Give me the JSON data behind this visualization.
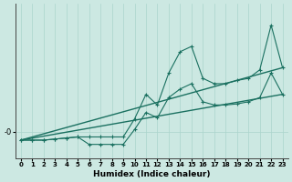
{
  "xlabel": "Humidex (Indice chaleur)",
  "background_color": "#cce8e2",
  "grid_color": "#aad4cc",
  "line_color": "#1a7060",
  "x_ticks": [
    0,
    1,
    2,
    3,
    4,
    5,
    6,
    7,
    8,
    9,
    10,
    11,
    12,
    13,
    14,
    15,
    16,
    17,
    18,
    19,
    20,
    21,
    22,
    23
  ],
  "series": [
    {
      "x": [
        0,
        1,
        2,
        3,
        4,
        5,
        6,
        7,
        8,
        9,
        10,
        11,
        12,
        13,
        14,
        15,
        16,
        17,
        18,
        19,
        20,
        21,
        22,
        23
      ],
      "y": [
        -0.8,
        -0.8,
        -0.8,
        -0.7,
        -0.6,
        -0.5,
        -1.2,
        -1.2,
        -1.2,
        -1.2,
        0.2,
        1.8,
        1.3,
        3.2,
        4.0,
        4.5,
        2.8,
        2.5,
        2.5,
        2.6,
        2.8,
        3.2,
        5.5,
        3.5
      ],
      "marker": "+",
      "markersize": 3.0,
      "linewidth": 0.8,
      "zorder": 3
    },
    {
      "x": [
        0,
        1,
        2,
        3,
        4,
        5,
        6,
        7,
        8,
        9,
        10,
        11,
        12,
        13,
        14,
        15,
        16,
        17,
        18,
        19,
        20,
        21,
        22,
        23
      ],
      "y": [
        -0.8,
        -0.8,
        -0.8,
        -0.7,
        -0.6,
        -0.5,
        -0.5,
        -0.5,
        -0.5,
        -0.5,
        1.2,
        3.5,
        2.5,
        5.5,
        7.5,
        8.0,
        5.0,
        4.5,
        4.5,
        4.8,
        5.0,
        5.8,
        10.0,
        6.0
      ],
      "marker": "+",
      "markersize": 3.0,
      "linewidth": 0.8,
      "zorder": 3
    },
    {
      "x": [
        0,
        23
      ],
      "y": [
        -0.8,
        3.5
      ],
      "marker": null,
      "markersize": 0,
      "linewidth": 1.0,
      "zorder": 2
    },
    {
      "x": [
        0,
        23
      ],
      "y": [
        -0.8,
        6.0
      ],
      "marker": null,
      "markersize": 0,
      "linewidth": 1.0,
      "zorder": 2
    }
  ],
  "ylim": [
    -2.5,
    12.0
  ],
  "xlim": [
    -0.5,
    23.5
  ],
  "y_zero_label": "-0",
  "figsize": [
    3.2,
    2.0
  ],
  "dpi": 100
}
